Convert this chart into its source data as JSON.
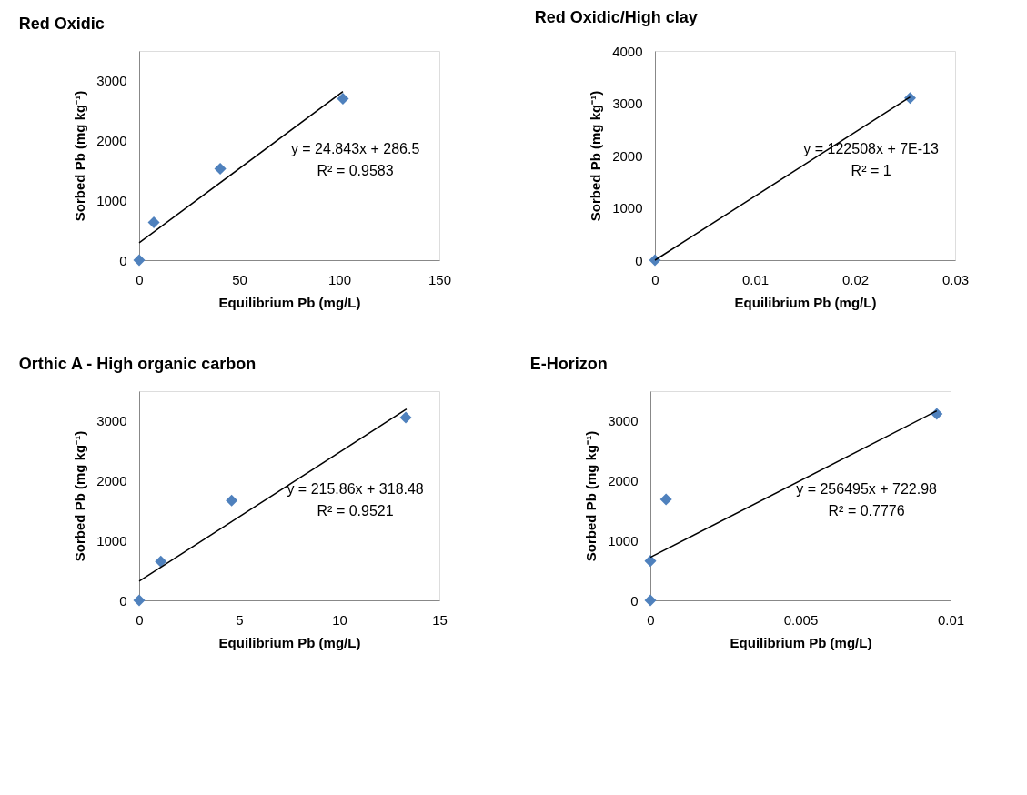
{
  "chart_data": [
    {
      "type": "scatter",
      "title": "Red Oxidic",
      "xlabel": "Equilibrium Pb (mg/L)",
      "ylabel": "Sorbed Pb (mg kg⁻¹)",
      "grid": false,
      "xlim": [
        0,
        150
      ],
      "xticks": [
        0,
        50,
        100,
        150
      ],
      "ylim": [
        0,
        3500
      ],
      "yticks": [
        0,
        1000,
        2000,
        3000
      ],
      "series": [
        {
          "color": "#4f81bd",
          "marker": "diamond",
          "x": [
            0,
            7.3,
            40.5,
            101.8
          ],
          "values": [
            0,
            630,
            1530,
            2700
          ]
        },
        {
          "type": "line",
          "color": "#000000",
          "x": [
            0,
            101.8
          ],
          "values": [
            290,
            2820
          ]
        }
      ],
      "annotations": [
        "y = 24.843x + 286.5",
        "R² = 0.9583"
      ]
    },
    {
      "type": "scatter",
      "title": "Red Oxidic/High clay",
      "xlabel": "Equilibrium Pb (mg/L)",
      "ylabel": "Sorbed Pb (mg kg⁻¹)",
      "grid": false,
      "xlim": [
        0,
        0.03
      ],
      "xticks": [
        0,
        0.01,
        0.02,
        0.03
      ],
      "ylim": [
        0,
        4000
      ],
      "yticks": [
        0,
        1000,
        2000,
        3000,
        4000
      ],
      "series": [
        {
          "color": "#4f81bd",
          "marker": "diamond",
          "x": [
            0,
            0.0255
          ],
          "values": [
            0,
            3100
          ]
        },
        {
          "type": "line",
          "color": "#000000",
          "x": [
            0,
            0.0255
          ],
          "values": [
            0,
            3120
          ]
        }
      ],
      "annotations": [
        "y = 122508x + 7E-13",
        "R² = 1"
      ]
    },
    {
      "type": "scatter",
      "title": "Orthic A - High organic carbon",
      "xlabel": "Equilibrium Pb (mg/L)",
      "ylabel": "Sorbed Pb (mg kg⁻¹)",
      "grid": false,
      "xlim": [
        0,
        15
      ],
      "xticks": [
        0,
        5,
        10,
        15
      ],
      "ylim": [
        0,
        3500
      ],
      "yticks": [
        0,
        1000,
        2000,
        3000
      ],
      "series": [
        {
          "color": "#4f81bd",
          "marker": "diamond",
          "x": [
            0,
            1.08,
            4.62,
            13.32
          ],
          "values": [
            0,
            650,
            1670,
            3060
          ]
        },
        {
          "type": "line",
          "color": "#000000",
          "x": [
            0,
            13.36
          ],
          "values": [
            320,
            3200
          ]
        }
      ],
      "annotations": [
        "y = 215.86x + 318.48",
        "R² = 0.9521"
      ]
    },
    {
      "type": "scatter",
      "title": "E-Horizon",
      "xlabel": "Equilibrium Pb (mg/L)",
      "ylabel": "Sorbed Pb (mg kg⁻¹)",
      "grid": false,
      "xlim": [
        0,
        0.01
      ],
      "xticks": [
        0,
        0.005,
        0.01
      ],
      "ylim": [
        0,
        3500
      ],
      "yticks": [
        0,
        1000,
        2000,
        3000
      ],
      "series": [
        {
          "color": "#4f81bd",
          "marker": "diamond",
          "x": [
            0,
            0,
            0.00052,
            0.00954
          ],
          "values": [
            0,
            660,
            1690,
            3120
          ]
        },
        {
          "type": "line",
          "color": "#000000",
          "x": [
            0,
            0.00954
          ],
          "values": [
            720,
            3170
          ]
        }
      ],
      "annotations": [
        "y = 256495x + 722.98",
        "R² = 0.7776"
      ]
    }
  ]
}
